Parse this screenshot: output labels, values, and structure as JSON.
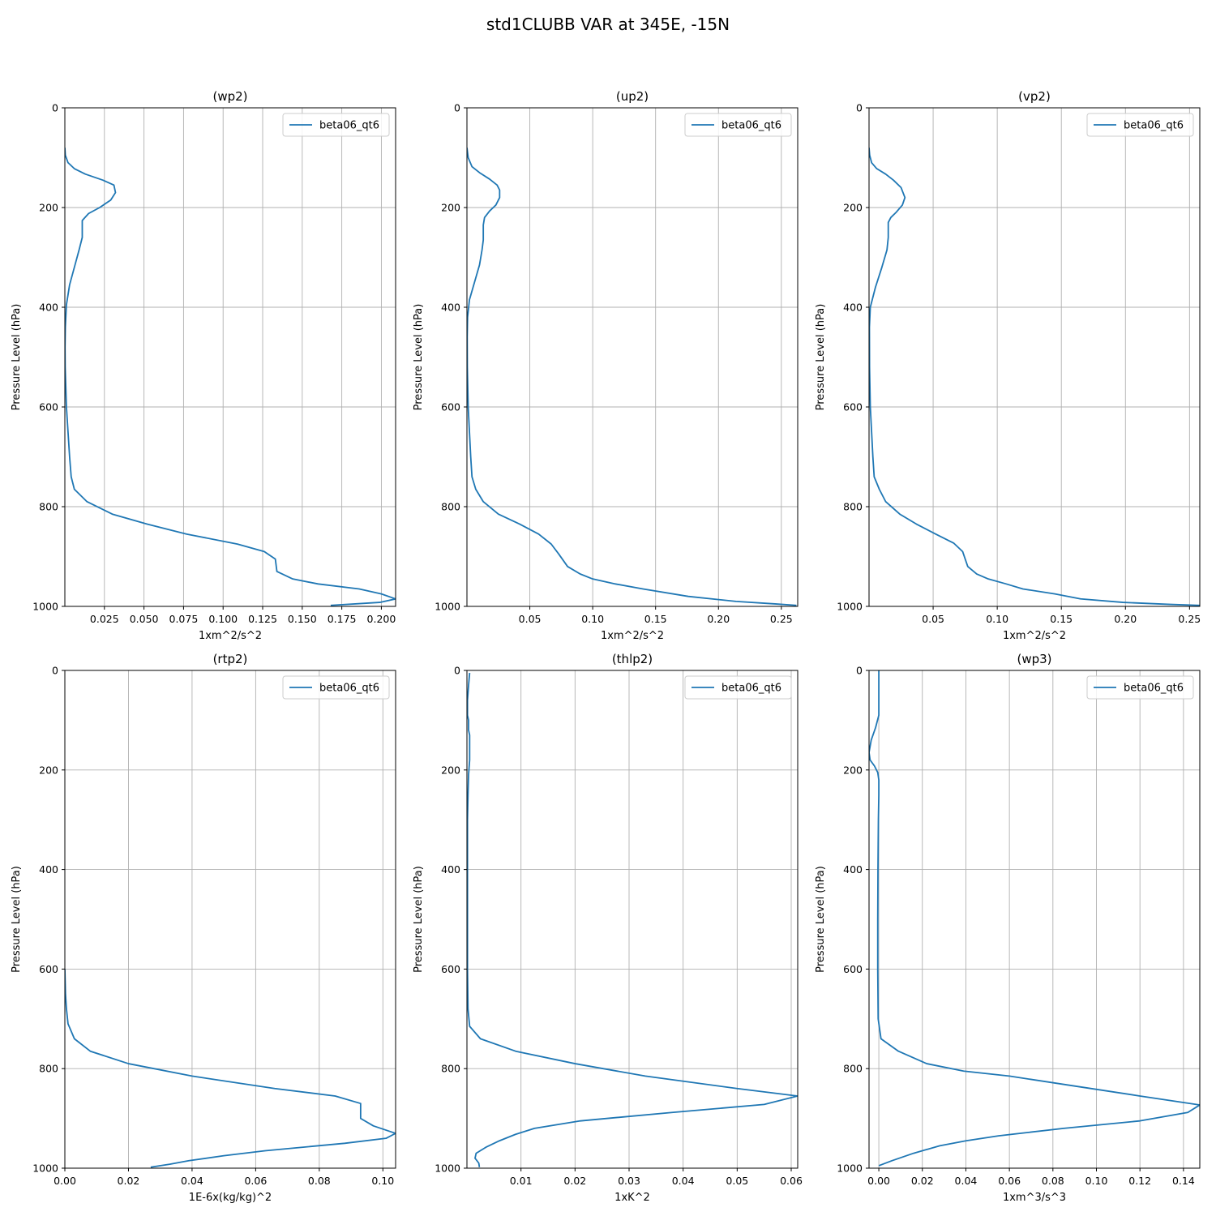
{
  "figure": {
    "title": "std1CLUBB VAR at 345E, -15N"
  },
  "chart_data": [
    {
      "type": "line",
      "title": "(wp2)",
      "xlabel": "1xm^2/s^2",
      "ylabel": "Pressure Level (hPa)",
      "xlim": [
        0.0,
        0.209
      ],
      "ylim": [
        1000,
        0
      ],
      "y_inverted": true,
      "xticks": [
        0.025,
        0.05,
        0.075,
        0.1,
        0.125,
        0.15,
        0.175,
        0.2
      ],
      "xtick_labels": [
        "0.025",
        "0.050",
        "0.075",
        "0.100",
        "0.125",
        "0.150",
        "0.175",
        "0.200"
      ],
      "yticks": [
        0,
        200,
        400,
        600,
        800,
        1000
      ],
      "grid": true,
      "legend": "upper right",
      "series": [
        {
          "name": "beta06_qt6",
          "color": "#1f77b4",
          "x": [
            0.0,
            0.0003,
            0.002,
            0.006,
            0.013,
            0.024,
            0.031,
            0.032,
            0.029,
            0.022,
            0.015,
            0.011,
            0.011,
            0.011,
            0.009,
            0.006,
            0.003,
            0.001,
            0.0003,
            0.0001,
            0.0002,
            0.001,
            0.002,
            0.003,
            0.004,
            0.006,
            0.014,
            0.03,
            0.052,
            0.077,
            0.109,
            0.126,
            0.133,
            0.134,
            0.144,
            0.16,
            0.186,
            0.2,
            0.209,
            0.199,
            0.168
          ],
          "y": [
            80,
            95,
            110,
            122,
            133,
            145,
            155,
            170,
            185,
            200,
            212,
            226,
            240,
            260,
            285,
            320,
            355,
            395,
            440,
            480,
            520,
            600,
            650,
            700,
            740,
            765,
            790,
            815,
            835,
            855,
            875,
            890,
            905,
            930,
            945,
            955,
            965,
            975,
            985,
            992,
            998
          ]
        }
      ]
    },
    {
      "type": "line",
      "title": "(up2)",
      "xlabel": "1xm^2/s^2",
      "ylabel": "Pressure Level (hPa)",
      "xlim": [
        0.0,
        0.263
      ],
      "ylim": [
        1000,
        0
      ],
      "y_inverted": true,
      "xticks": [
        0.05,
        0.1,
        0.15,
        0.2,
        0.25
      ],
      "xtick_labels": [
        "0.05",
        "0.10",
        "0.15",
        "0.20",
        "0.25"
      ],
      "yticks": [
        0,
        200,
        400,
        600,
        800,
        1000
      ],
      "grid": true,
      "legend": "upper right",
      "series": [
        {
          "name": "beta06_qt6",
          "color": "#1f77b4",
          "x": [
            0.0,
            0.001,
            0.004,
            0.01,
            0.018,
            0.024,
            0.026,
            0.026,
            0.023,
            0.018,
            0.014,
            0.013,
            0.013,
            0.013,
            0.012,
            0.01,
            0.006,
            0.002,
            0.0005,
            0.0002,
            0.0003,
            0.001,
            0.002,
            0.003,
            0.004,
            0.007,
            0.013,
            0.025,
            0.042,
            0.057,
            0.067,
            0.073,
            0.08,
            0.09,
            0.1,
            0.118,
            0.14,
            0.176,
            0.214,
            0.245,
            0.262
          ],
          "y": [
            80,
            100,
            118,
            130,
            143,
            155,
            165,
            180,
            195,
            207,
            220,
            235,
            250,
            265,
            285,
            315,
            350,
            385,
            420,
            460,
            520,
            600,
            650,
            700,
            740,
            765,
            790,
            815,
            835,
            855,
            875,
            895,
            920,
            935,
            945,
            955,
            965,
            980,
            990,
            995,
            998
          ]
        }
      ]
    },
    {
      "type": "line",
      "title": "(vp2)",
      "xlabel": "1xm^2/s^2",
      "ylabel": "Pressure Level (hPa)",
      "xlim": [
        0.0,
        0.258
      ],
      "ylim": [
        1000,
        0
      ],
      "y_inverted": true,
      "xticks": [
        0.05,
        0.1,
        0.15,
        0.2,
        0.25
      ],
      "xtick_labels": [
        "0.05",
        "0.10",
        "0.15",
        "0.20",
        "0.25"
      ],
      "yticks": [
        0,
        200,
        400,
        600,
        800,
        1000
      ],
      "grid": true,
      "legend": "upper right",
      "series": [
        {
          "name": "beta06_qt6",
          "color": "#1f77b4",
          "x": [
            0.0,
            0.0005,
            0.002,
            0.006,
            0.013,
            0.019,
            0.025,
            0.028,
            0.026,
            0.021,
            0.017,
            0.015,
            0.015,
            0.015,
            0.015,
            0.014,
            0.01,
            0.005,
            0.001,
            0.0003,
            0.0004,
            0.001,
            0.002,
            0.003,
            0.004,
            0.008,
            0.013,
            0.024,
            0.037,
            0.052,
            0.066,
            0.073,
            0.077,
            0.084,
            0.093,
            0.107,
            0.12,
            0.145,
            0.165,
            0.198,
            0.235,
            0.258
          ],
          "y": [
            80,
            95,
            110,
            122,
            133,
            145,
            160,
            180,
            195,
            210,
            220,
            230,
            235,
            245,
            260,
            285,
            320,
            360,
            400,
            440,
            520,
            600,
            650,
            700,
            740,
            765,
            790,
            815,
            835,
            855,
            873,
            890,
            920,
            935,
            945,
            955,
            965,
            975,
            985,
            992,
            996,
            998
          ]
        }
      ]
    },
    {
      "type": "line",
      "title": "(rtp2)",
      "xlabel": "1E-6x(kg/kg)^2",
      "ylabel": "Pressure Level (hPa)",
      "xlim": [
        0.0,
        0.104
      ],
      "ylim": [
        1000,
        0
      ],
      "y_inverted": true,
      "xticks": [
        0.0,
        0.02,
        0.04,
        0.06,
        0.08,
        0.1
      ],
      "xtick_labels": [
        "0.00",
        "0.02",
        "0.04",
        "0.06",
        "0.08",
        "0.10"
      ],
      "yticks": [
        0,
        200,
        400,
        600,
        800,
        1000
      ],
      "grid": true,
      "legend": "upper right",
      "series": [
        {
          "name": "beta06_qt6",
          "color": "#1f77b4",
          "x": [
            0.0,
            0.0002,
            0.0005,
            0.001,
            0.003,
            0.008,
            0.02,
            0.04,
            0.066,
            0.085,
            0.093,
            0.093,
            0.097,
            0.104,
            0.101,
            0.088,
            0.063,
            0.05,
            0.039,
            0.033,
            0.027
          ],
          "y": [
            600,
            650,
            680,
            710,
            740,
            765,
            790,
            815,
            840,
            855,
            870,
            900,
            915,
            930,
            940,
            950,
            965,
            975,
            985,
            992,
            998
          ]
        }
      ]
    },
    {
      "type": "line",
      "title": "(thlp2)",
      "xlabel": "1xK^2",
      "ylabel": "Pressure Level (hPa)",
      "xlim": [
        0.0,
        0.0612
      ],
      "ylim": [
        1000,
        0
      ],
      "y_inverted": true,
      "xticks": [
        0.01,
        0.02,
        0.03,
        0.04,
        0.05,
        0.06
      ],
      "xtick_labels": [
        "0.01",
        "0.02",
        "0.03",
        "0.04",
        "0.05",
        "0.06"
      ],
      "yticks": [
        0,
        200,
        400,
        600,
        800,
        1000
      ],
      "grid": true,
      "legend": "upper right",
      "series": [
        {
          "name": "beta06_qt6",
          "color": "#1f77b4",
          "x": [
            0.0005,
            0.0003,
            0.0001,
            0.0001,
            0.0003,
            0.0003,
            0.0005,
            0.0005,
            0.0005,
            0.0003,
            0.0002,
            0.0001,
            0.0001,
            0.0001,
            0.0001,
            0.0001,
            0.0001,
            0.0002,
            0.0005,
            0.0025,
            0.009,
            0.02,
            0.033,
            0.05,
            0.0612,
            0.055,
            0.038,
            0.021,
            0.0125,
            0.009,
            0.006,
            0.0035,
            0.0017,
            0.0015,
            0.0022,
            0.0023
          ],
          "y": [
            5,
            30,
            60,
            90,
            100,
            120,
            130,
            150,
            180,
            210,
            250,
            300,
            350,
            400,
            450,
            500,
            600,
            680,
            715,
            740,
            765,
            790,
            815,
            840,
            855,
            872,
            888,
            905,
            920,
            932,
            945,
            958,
            970,
            980,
            990,
            998
          ]
        }
      ]
    },
    {
      "type": "line",
      "title": "(wp3)",
      "xlabel": "1xm^3/s^3",
      "ylabel": "Pressure Level (hPa)",
      "xlim": [
        -0.0045,
        0.1475
      ],
      "ylim": [
        1000,
        0
      ],
      "y_inverted": true,
      "xticks": [
        0.0,
        0.02,
        0.04,
        0.06,
        0.08,
        0.1,
        0.12,
        0.14
      ],
      "xtick_labels": [
        "0.00",
        "0.02",
        "0.04",
        "0.06",
        "0.08",
        "0.10",
        "0.12",
        "0.14"
      ],
      "yticks": [
        0,
        200,
        400,
        600,
        800,
        1000
      ],
      "grid": true,
      "legend": "upper right",
      "series": [
        {
          "name": "beta06_qt6",
          "color": "#1f77b4",
          "x": [
            0.0,
            0.0,
            0.0,
            -0.0015,
            -0.0035,
            -0.0045,
            -0.004,
            -0.002,
            -0.0005,
            0.0,
            0.0,
            -0.0002,
            -0.0003,
            -0.0004,
            -0.0005,
            -0.0005,
            -0.0003,
            0.001,
            0.009,
            0.022,
            0.039,
            0.06,
            0.09,
            0.12,
            0.1475,
            0.142,
            0.12,
            0.085,
            0.055,
            0.04,
            0.028,
            0.016,
            0.006,
            0.0
          ],
          "y": [
            0,
            50,
            90,
            115,
            140,
            165,
            180,
            192,
            205,
            220,
            250,
            300,
            350,
            400,
            500,
            600,
            700,
            740,
            765,
            790,
            805,
            815,
            835,
            855,
            873,
            888,
            905,
            920,
            935,
            945,
            955,
            970,
            985,
            995
          ]
        }
      ]
    }
  ]
}
